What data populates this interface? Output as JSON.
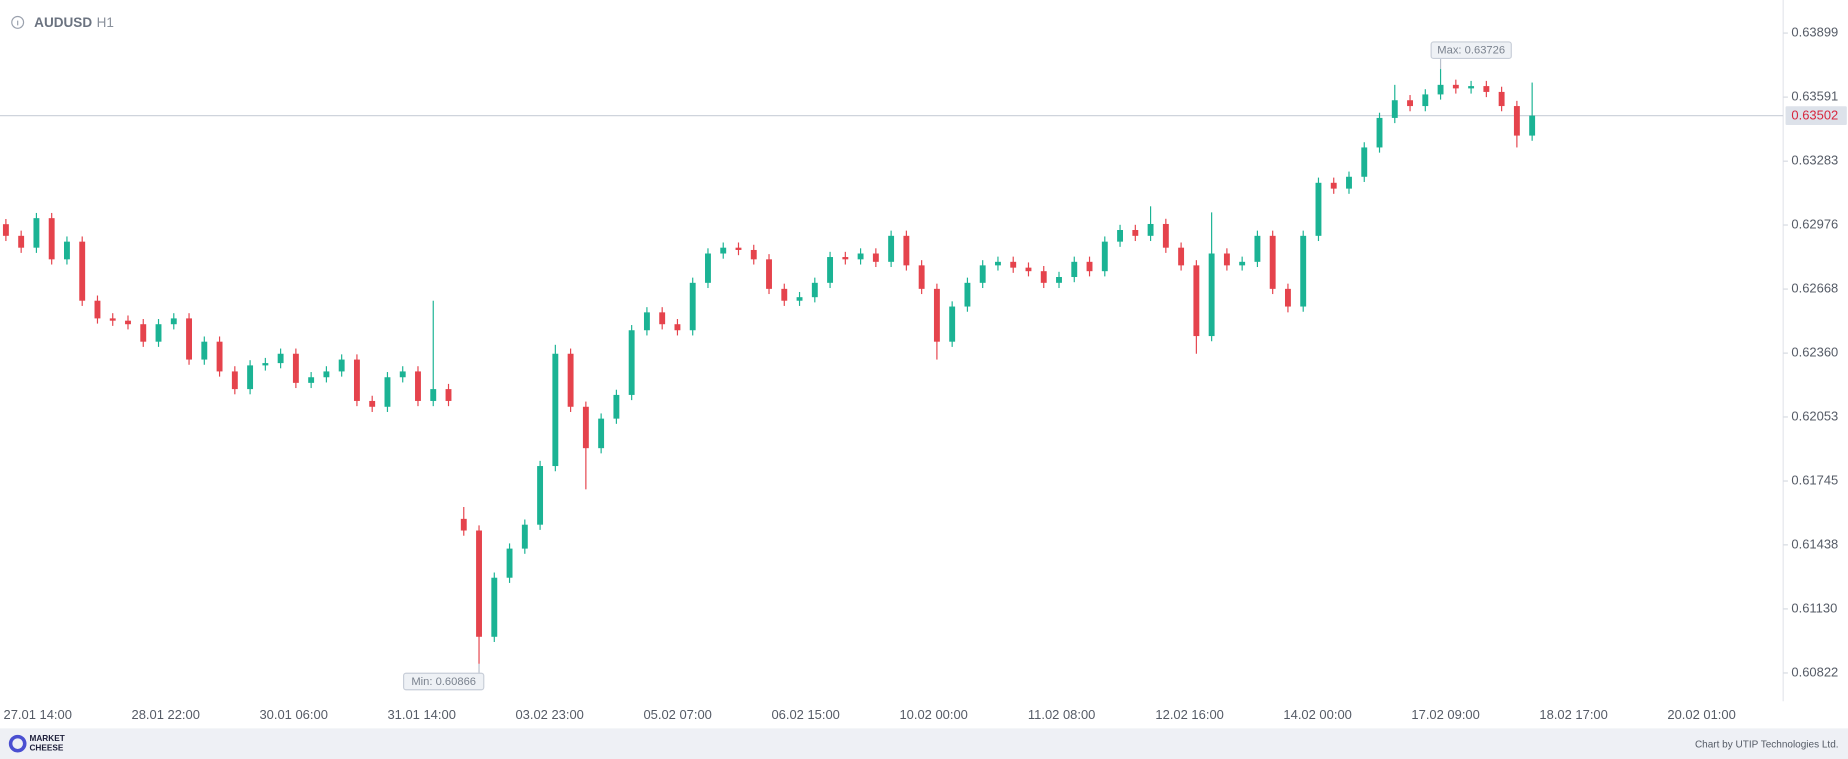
{
  "chart_data": {
    "type": "candlestick",
    "symbol": "AUDUSD",
    "timeframe": "H1",
    "up_color": "#1bb394",
    "down_color": "#e5434c",
    "ylim": [
      0.60686,
      0.64058
    ],
    "yticks": [
      0.63899,
      0.63591,
      0.63283,
      0.62976,
      0.62668,
      {
        "value": 0.6236,
        "label": "0.62360"
      },
      0.62053,
      0.61745,
      0.61438,
      {
        "value": 0.6113,
        "label": "0.61130"
      },
      0.60822
    ],
    "xtick_labels": [
      "27.01 14:00",
      "28.01 22:00",
      "30.01 06:00",
      "31.01 14:00",
      "03.02 23:00",
      "05.02 07:00",
      "06.02 15:00",
      "10.02 00:00",
      "11.02 08:00",
      "12.02 16:00",
      "14.02 00:00",
      "17.02 09:00",
      "18.02 17:00",
      "20.02 01:00"
    ],
    "last_price": 0.63502,
    "annotations": [
      {
        "text": "Max: 0.63726",
        "value": 0.63726
      },
      {
        "text": "Min: 0.60866",
        "value": 0.60866
      }
    ],
    "open": [
      0.6298,
      0.62924,
      0.62867,
      0.63009,
      0.62811,
      0.62896,
      0.62612,
      0.62527,
      0.62516,
      0.62499,
      0.62415,
      0.62499,
      0.62527,
      0.62329,
      0.62415,
      0.62272,
      0.62187,
      0.62301,
      0.62312,
      0.62357,
      0.62217,
      0.62244,
      0.62272,
      0.62329,
      0.6213,
      0.62102,
      0.62244,
      0.62272,
      0.6213,
      0.62187,
      0.61563,
      0.61507,
      0.60996,
      0.6128,
      0.6142,
      0.61535,
      0.61817,
      0.62357,
      0.62102,
      0.61903,
      0.62045,
      0.62159,
      0.6247,
      0.62556,
      0.62499,
      0.6247,
      0.62698,
      0.62839,
      0.62867,
      0.62856,
      0.62811,
      0.62669,
      0.62612,
      0.62629,
      0.62698,
      0.62822,
      0.62811,
      0.62839,
      0.62799,
      0.62924,
      0.62782,
      0.62669,
      0.62415,
      0.62584,
      0.62698,
      0.62782,
      0.62799,
      0.62771,
      0.62754,
      0.62698,
      0.62726,
      0.62799,
      0.62754,
      0.62896,
      0.62952,
      0.62924,
      0.62981,
      0.62867,
      0.62782,
      0.62442,
      0.62839,
      0.62782,
      0.62799,
      0.62924,
      0.62669,
      0.62584,
      0.62924,
      0.63179,
      0.63151,
      0.63208,
      0.63349,
      0.63491,
      0.63576,
      0.63548,
      0.63604,
      0.6365,
      0.63633,
      0.63644,
      0.63616,
      0.63548,
      0.63406
    ],
    "high": [
      0.63005,
      0.62949,
      0.63034,
      0.63034,
      0.62921,
      0.62921,
      0.62637,
      0.62552,
      0.62541,
      0.62524,
      0.62524,
      0.62552,
      0.62552,
      0.6244,
      0.6244,
      0.62297,
      0.62326,
      0.62337,
      0.62382,
      0.62382,
      0.62269,
      0.62297,
      0.62354,
      0.62354,
      0.62155,
      0.62269,
      0.62297,
      0.62297,
      0.62612,
      0.62212,
      0.6162,
      0.61532,
      0.61305,
      0.61445,
      0.6156,
      0.61842,
      0.624,
      0.62382,
      0.62127,
      0.6207,
      0.62184,
      0.62495,
      0.62581,
      0.62581,
      0.62524,
      0.62723,
      0.62864,
      0.62892,
      0.62892,
      0.62881,
      0.62836,
      0.62694,
      0.62654,
      0.62723,
      0.62847,
      0.62847,
      0.62864,
      0.62864,
      0.62949,
      0.62949,
      0.62807,
      0.62694,
      0.62609,
      0.62723,
      0.62807,
      0.62824,
      0.62824,
      0.62796,
      0.62779,
      0.62751,
      0.62824,
      0.62824,
      0.62921,
      0.62977,
      0.62977,
      0.63066,
      0.63006,
      0.62892,
      0.62807,
      0.63037,
      0.62864,
      0.62824,
      0.62949,
      0.62949,
      0.62694,
      0.62949,
      0.63204,
      0.63204,
      0.63233,
      0.63374,
      0.63516,
      0.6365,
      0.63601,
      0.63629,
      0.63726,
      0.63675,
      0.63669,
      0.63669,
      0.63641,
      0.63573,
      0.63661
    ],
    "low": [
      0.62899,
      0.62842,
      0.62842,
      0.62786,
      0.62786,
      0.62587,
      0.62502,
      0.62491,
      0.62474,
      0.6239,
      0.6239,
      0.62474,
      0.62304,
      0.62304,
      0.62247,
      0.62162,
      0.62162,
      0.62276,
      0.62287,
      0.62192,
      0.62192,
      0.62219,
      0.62247,
      0.62105,
      0.62077,
      0.62077,
      0.62219,
      0.62105,
      0.62105,
      0.62105,
      0.61482,
      0.60866,
      0.60971,
      0.61255,
      0.61395,
      0.6151,
      0.61792,
      0.62077,
      0.61705,
      0.61878,
      0.6202,
      0.62134,
      0.62445,
      0.62474,
      0.62445,
      0.62445,
      0.62673,
      0.62814,
      0.62831,
      0.62786,
      0.62644,
      0.62587,
      0.62587,
      0.62604,
      0.62673,
      0.62786,
      0.62786,
      0.62774,
      0.62774,
      0.62757,
      0.62644,
      0.62329,
      0.6239,
      0.62559,
      0.62673,
      0.62757,
      0.62746,
      0.62729,
      0.62673,
      0.62673,
      0.62701,
      0.62729,
      0.62729,
      0.62871,
      0.62899,
      0.62899,
      0.62842,
      0.62757,
      0.62357,
      0.62417,
      0.62757,
      0.62757,
      0.62774,
      0.62644,
      0.62556,
      0.62559,
      0.62899,
      0.63126,
      0.63126,
      0.63183,
      0.63324,
      0.63466,
      0.63523,
      0.63523,
      0.63579,
      0.63608,
      0.63608,
      0.63591,
      0.63523,
      0.63349,
      0.63381
    ],
    "close": [
      0.62924,
      0.62867,
      0.63009,
      0.62811,
      0.62896,
      0.62612,
      0.62527,
      0.62516,
      0.62499,
      0.62415,
      0.62499,
      0.62527,
      0.62329,
      0.62415,
      0.62272,
      0.62187,
      0.62301,
      0.62312,
      0.62357,
      0.62217,
      0.62244,
      0.62272,
      0.62329,
      0.6213,
      0.62102,
      0.62244,
      0.62272,
      0.6213,
      0.62187,
      0.6213,
      0.61507,
      0.60996,
      0.6128,
      0.6142,
      0.61535,
      0.61817,
      0.62357,
      0.62102,
      0.61903,
      0.62045,
      0.62159,
      0.6247,
      0.62556,
      0.62499,
      0.6247,
      0.62698,
      0.62839,
      0.62867,
      0.62856,
      0.62811,
      0.62669,
      0.62612,
      0.62629,
      0.62698,
      0.62822,
      0.62811,
      0.62839,
      0.62799,
      0.62924,
      0.62782,
      0.62669,
      0.62415,
      0.62584,
      0.62698,
      0.62782,
      0.62799,
      0.62771,
      0.62754,
      0.62698,
      0.62726,
      0.62799,
      0.62754,
      0.62896,
      0.62952,
      0.62924,
      0.62981,
      0.62867,
      0.62782,
      0.62442,
      0.62839,
      0.62782,
      0.62799,
      0.62924,
      0.62669,
      0.62584,
      0.62924,
      0.63179,
      0.63151,
      0.63208,
      0.63349,
      0.63491,
      0.63576,
      0.63548,
      0.63604,
      0.6365,
      0.63633,
      0.63644,
      0.63616,
      0.63548,
      0.63406,
      0.63502
    ]
  },
  "footer": {
    "logo": [
      "MARKET",
      "CHEESE"
    ],
    "credit": "Chart by UTIP Technologies Ltd."
  }
}
